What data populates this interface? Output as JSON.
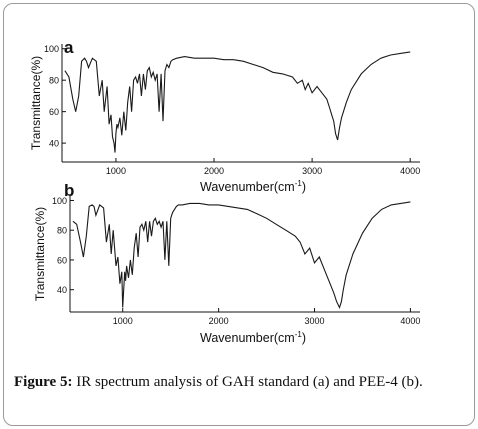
{
  "chart_data": [
    {
      "type": "line",
      "panel_label": "a",
      "xlabel": "Wavenumber(cm",
      "xlabel_sup": "-1",
      "xlabel_close": ")",
      "ylabel": "Transmittance(%)",
      "xlim": [
        450,
        4100
      ],
      "ylim": [
        28,
        103
      ],
      "xticks": [
        1000,
        2000,
        3000,
        4000
      ],
      "yticks": [
        40,
        60,
        80,
        100
      ],
      "grid": false,
      "x": [
        480,
        520,
        560,
        590,
        620,
        650,
        680,
        700,
        720,
        760,
        800,
        830,
        860,
        880,
        910,
        930,
        950,
        965,
        980,
        990,
        1000,
        1010,
        1020,
        1040,
        1060,
        1080,
        1100,
        1120,
        1140,
        1160,
        1180,
        1200,
        1220,
        1240,
        1260,
        1280,
        1300,
        1320,
        1340,
        1360,
        1380,
        1400,
        1420,
        1440,
        1460,
        1480,
        1500,
        1520,
        1540,
        1560,
        1580,
        1620,
        1700,
        1800,
        1900,
        2000,
        2100,
        2200,
        2300,
        2400,
        2500,
        2600,
        2700,
        2800,
        2850,
        2900,
        2930,
        2960,
        3000,
        3050,
        3100,
        3150,
        3180,
        3200,
        3220,
        3240,
        3260,
        3280,
        3300,
        3350,
        3400,
        3500,
        3600,
        3700,
        3800,
        3900,
        4000
      ],
      "y": [
        86,
        82,
        68,
        60,
        70,
        92,
        94,
        92,
        88,
        94,
        92,
        70,
        80,
        60,
        76,
        52,
        58,
        44,
        40,
        34,
        46,
        52,
        50,
        56,
        45,
        60,
        48,
        66,
        76,
        60,
        80,
        82,
        78,
        84,
        70,
        84,
        74,
        86,
        88,
        82,
        85,
        80,
        84,
        60,
        84,
        54,
        86,
        90,
        88,
        92,
        93,
        94,
        95,
        94,
        94,
        94,
        93,
        93,
        92,
        90,
        88,
        85,
        84,
        82,
        78,
        80,
        74,
        78,
        72,
        76,
        72,
        68,
        62,
        58,
        54,
        46,
        42,
        50,
        56,
        66,
        74,
        84,
        90,
        94,
        96,
        97,
        98
      ]
    },
    {
      "type": "line",
      "panel_label": "b",
      "xlabel": "Wavenumber(cm",
      "xlabel_sup": "-1",
      "xlabel_close": ")",
      "ylabel": "Transmittance(%)",
      "xlim": [
        450,
        4100
      ],
      "ylim": [
        25,
        103
      ],
      "xticks": [
        1000,
        2000,
        3000,
        4000
      ],
      "yticks": [
        40,
        60,
        80,
        100
      ],
      "grid": false,
      "x": [
        480,
        520,
        560,
        590,
        620,
        650,
        680,
        700,
        720,
        760,
        800,
        830,
        860,
        880,
        900,
        930,
        950,
        970,
        990,
        1000,
        1010,
        1020,
        1030,
        1040,
        1060,
        1080,
        1100,
        1120,
        1140,
        1160,
        1180,
        1200,
        1220,
        1240,
        1260,
        1280,
        1300,
        1320,
        1340,
        1360,
        1380,
        1400,
        1420,
        1440,
        1460,
        1480,
        1500,
        1520,
        1540,
        1560,
        1580,
        1620,
        1700,
        1800,
        1900,
        2000,
        2100,
        2200,
        2300,
        2400,
        2500,
        2600,
        2700,
        2800,
        2850,
        2900,
        2950,
        3000,
        3050,
        3100,
        3150,
        3200,
        3230,
        3260,
        3280,
        3300,
        3330,
        3400,
        3500,
        3600,
        3700,
        3800,
        3900,
        4000
      ],
      "y": [
        86,
        84,
        72,
        62,
        76,
        96,
        97,
        96,
        90,
        97,
        95,
        72,
        84,
        64,
        80,
        56,
        62,
        44,
        52,
        28,
        40,
        52,
        46,
        56,
        48,
        60,
        50,
        68,
        78,
        62,
        82,
        84,
        80,
        86,
        72,
        86,
        76,
        86,
        88,
        84,
        86,
        82,
        86,
        60,
        86,
        56,
        88,
        92,
        94,
        96,
        97,
        97,
        98,
        98,
        97,
        97,
        96,
        95,
        94,
        91,
        88,
        84,
        80,
        76,
        72,
        64,
        68,
        58,
        62,
        54,
        46,
        38,
        32,
        28,
        32,
        40,
        50,
        64,
        78,
        88,
        94,
        97,
        98,
        99
      ]
    }
  ],
  "caption": {
    "label": "Figure 5:",
    "text": " IR spectrum analysis of GAH standard (a) and PEE-4 (b)."
  },
  "colors": {
    "line": "#1a1a1a",
    "axis": "#111111",
    "frame": "#9a9a9a"
  }
}
